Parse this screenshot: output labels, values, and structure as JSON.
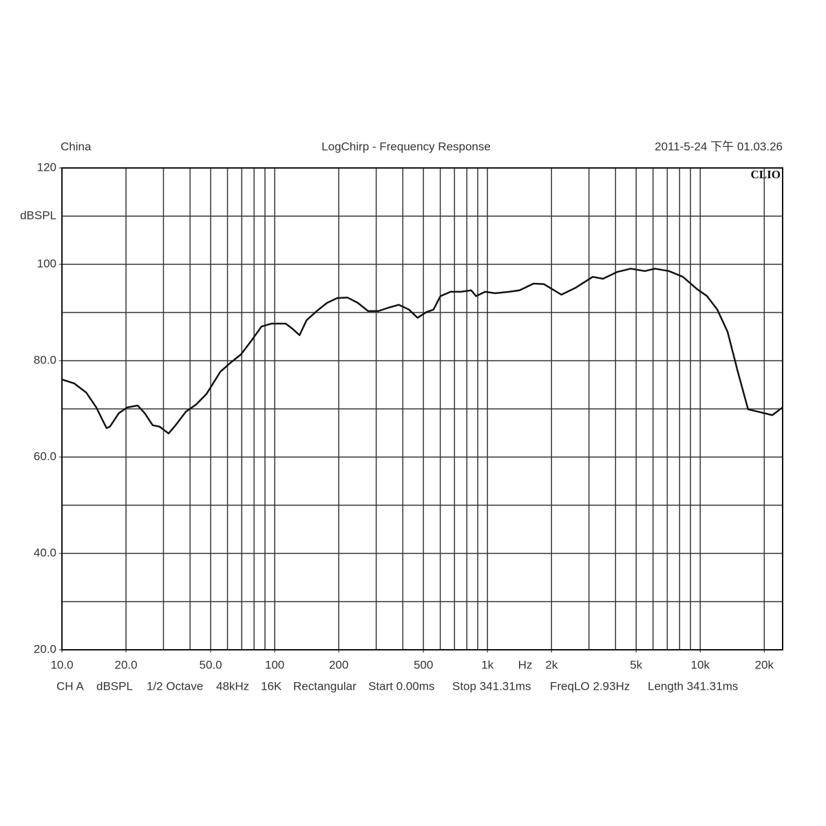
{
  "chart_data": {
    "type": "line",
    "title": "LogChirp - Frequency Response",
    "header_left": "China",
    "header_right": "2011-5-24 下午 01.03.26",
    "logo": "CLIO",
    "y_label": "dBSPL",
    "x_label": "Hz",
    "log_x": true,
    "grid": true,
    "xlim": [
      10,
      24400
    ],
    "ylim": [
      20,
      120
    ],
    "xticks": [
      {
        "value": 10,
        "label": "10.0"
      },
      {
        "value": 20,
        "label": "20.0"
      },
      {
        "value": 50,
        "label": "50.0"
      },
      100,
      200,
      500,
      {
        "value": 1000,
        "label": "1k"
      },
      {
        "value": 2000,
        "label": "2k"
      },
      {
        "value": 5000,
        "label": "5k"
      },
      {
        "value": 10000,
        "label": "10k"
      },
      {
        "value": 20000,
        "label": "20k"
      }
    ],
    "x_grid": [
      10,
      20,
      30,
      40,
      50,
      60,
      70,
      80,
      90,
      100,
      200,
      300,
      400,
      500,
      600,
      700,
      800,
      900,
      1000,
      2000,
      3000,
      4000,
      5000,
      6000,
      7000,
      8000,
      9000,
      10000,
      20000
    ],
    "yticks": [
      {
        "value": 20,
        "label": "20.0"
      },
      {
        "value": 40,
        "label": "40.0"
      },
      {
        "value": 60,
        "label": "60.0"
      },
      {
        "value": 80,
        "label": "80.0"
      },
      100,
      120
    ],
    "y_grid": [
      20,
      30,
      40,
      50,
      60,
      70,
      80,
      90,
      100,
      110,
      120
    ],
    "footer": [
      "CH A",
      "dBSPL",
      "1/2 Octave",
      "48kHz",
      "16K",
      "Rectangular",
      "Start 0.00ms",
      "Stop 341.31ms",
      "FreqLO 2.93Hz",
      "Length 341.31ms"
    ],
    "series": [
      {
        "color": "#111111",
        "x": [
          10,
          11.4,
          13,
          14.5,
          16.2,
          16.8,
          18.5,
          20.3,
          22.7,
          24.5,
          26.7,
          28.8,
          31.7,
          34.2,
          38.2,
          42.7,
          47.8,
          55.5,
          62.1,
          69.4,
          77.6,
          86.7,
          97,
          112.6,
          121.4,
          130.9,
          141.2,
          157.7,
          176.2,
          196.9,
          220,
          245.8,
          274.6,
          306.8,
          342.8,
          383,
          427.9,
          469.1,
          516.8,
          557.3,
          601.1,
          671.6,
          750.3,
          838.3,
          883.6,
          974.3,
          1089,
          1266,
          1415,
          1646,
          1839,
          2225,
          2588,
          3124,
          3491,
          4058,
          4718,
          5487,
          6131,
          7128,
          8288,
          9636,
          10767,
          12031,
          13444,
          15022,
          16785,
          18755,
          21808,
          24400
        ],
        "values": [
          76.1,
          75.3,
          73.4,
          70.3,
          66.0,
          66.3,
          69.1,
          70.3,
          70.7,
          69.1,
          66.6,
          66.3,
          64.9,
          66.6,
          69.4,
          70.9,
          73.1,
          77.7,
          79.6,
          81.3,
          84.1,
          87.1,
          87.7,
          87.7,
          86.6,
          85.3,
          88.4,
          90.3,
          92.0,
          93.0,
          93.1,
          92.0,
          90.3,
          90.3,
          91.0,
          91.6,
          90.6,
          88.9,
          90.1,
          90.6,
          93.4,
          94.3,
          94.3,
          94.6,
          93.4,
          94.3,
          94.0,
          94.3,
          94.6,
          96.0,
          95.9,
          93.7,
          95.1,
          97.4,
          97.0,
          98.4,
          99.1,
          98.6,
          99.1,
          98.6,
          97.4,
          94.9,
          93.4,
          90.6,
          86.0,
          77.7,
          69.9,
          69.4,
          68.7,
          70.3
        ]
      }
    ]
  }
}
